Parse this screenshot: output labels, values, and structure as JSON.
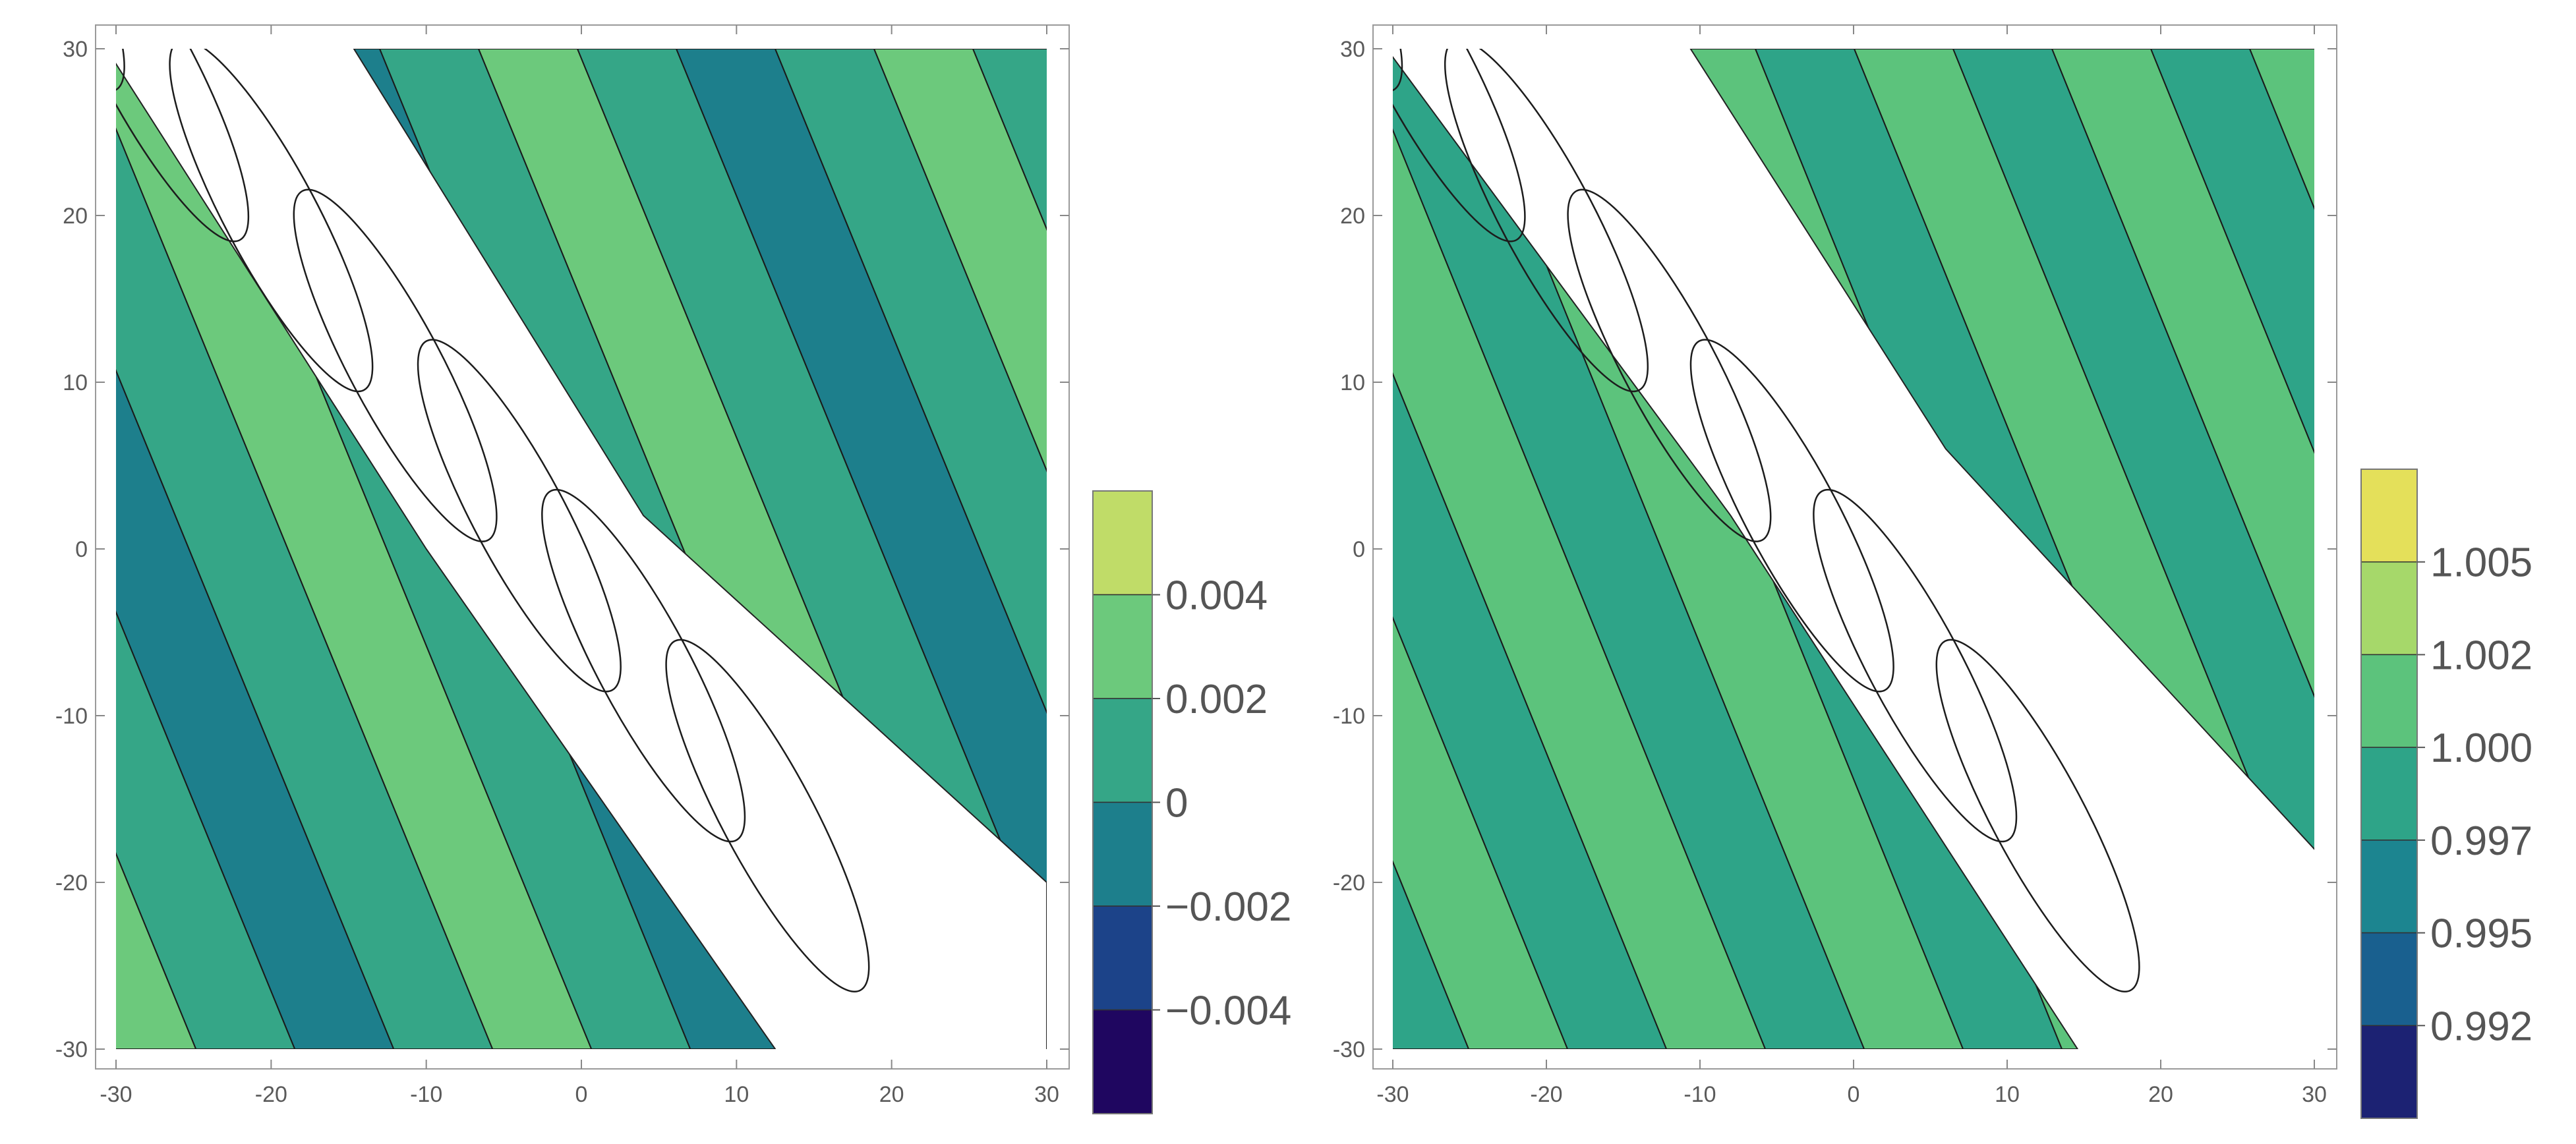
{
  "chart_data": [
    {
      "type": "contour",
      "xlim": [
        -30,
        30
      ],
      "ylim": [
        -30,
        30
      ],
      "x_ticks": [
        "-30",
        "-20",
        "-10",
        "0",
        "10",
        "20",
        "30"
      ],
      "y_ticks": [
        "30",
        "20",
        "10",
        "0",
        "-10",
        "-20",
        "-30"
      ],
      "contour_levels": [
        -0.004,
        -0.002,
        0,
        0.002,
        0.004
      ],
      "colorbar": {
        "labels": [
          "0.004",
          "0.002",
          "0",
          "−0.002",
          "−0.004"
        ],
        "colors": [
          "#c0dc68",
          "#6cc97c",
          "#35a687",
          "#1d7f8c",
          "#1c4389",
          "#1f0660"
        ]
      },
      "grid": false
    },
    {
      "type": "contour",
      "xlim": [
        -30,
        30
      ],
      "ylim": [
        -30,
        30
      ],
      "x_ticks": [
        "-30",
        "-20",
        "-10",
        "0",
        "10",
        "20",
        "30"
      ],
      "y_ticks": [
        "30",
        "20",
        "10",
        "0",
        "-10",
        "-20",
        "-30"
      ],
      "contour_levels": [
        0.992,
        0.995,
        0.997,
        1.0,
        1.002,
        1.005
      ],
      "colorbar": {
        "labels": [
          "1.005",
          "1.002",
          "1.000",
          "0.997",
          "0.995",
          "0.992"
        ],
        "colors": [
          "#e4e05a",
          "#a6d86a",
          "#5cc37c",
          "#2ea488",
          "#1c8590",
          "#19608f",
          "#1c2273"
        ]
      },
      "grid": false
    }
  ]
}
